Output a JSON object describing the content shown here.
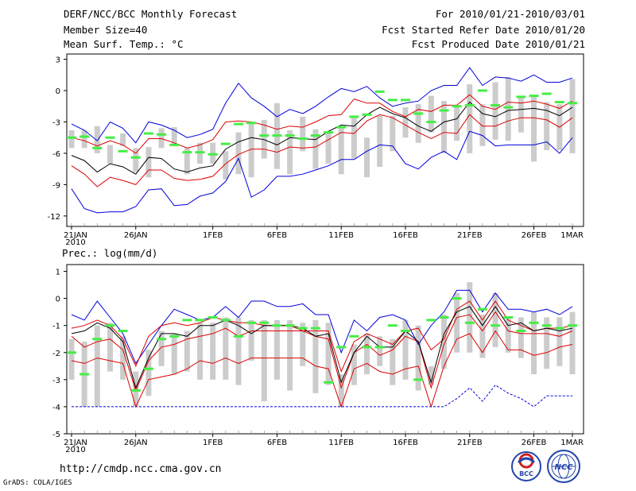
{
  "header": {
    "title": "DERF/NCC/BCC Monthly Forecast",
    "member_size": "Member Size=40",
    "variable": "Mean Surf. Temp.: °C",
    "period": "For 2010/01/21-2010/03/01",
    "refer_date": "Fcst Started Refer Date 2010/01/20",
    "produced_date": "Fcst Produced Date 2010/01/21"
  },
  "footer": {
    "url": "http://cmdp.ncc.cma.gov.cn",
    "credit": "GrADS: COLA/IGES"
  },
  "logos": {
    "bcc": "BCC",
    "ncc": "NCC"
  },
  "colors": {
    "envelope": "#0000dd",
    "spread": "#dd0000",
    "mean": "#000000",
    "marker": "#44ee44",
    "bar": "#cccccc"
  },
  "chart_data": [
    {
      "type": "line",
      "title": "Mean Surf. Temp.: °C",
      "ylim": [
        -13,
        3.5
      ],
      "yticks": [
        "3",
        "0",
        "-3",
        "-6",
        "-9",
        "-12"
      ],
      "ytick_values": [
        3,
        0,
        -3,
        -6,
        -9,
        -12
      ],
      "xticks": [
        "21JAN",
        "26JAN",
        "1FEB",
        "6FEB",
        "11FEB",
        "16FEB",
        "21FEB",
        "26FEB",
        "1MAR"
      ],
      "xtick_days": [
        0,
        5,
        11,
        16,
        21,
        26,
        31,
        36,
        39
      ],
      "xsub": "2010",
      "days": 40,
      "series": {
        "max": [
          -3.2,
          -3.8,
          -4.8,
          -3.0,
          -3.6,
          -5.0,
          -3.0,
          -3.3,
          -3.8,
          -4.5,
          -4.2,
          -3.7,
          -1.2,
          0.7,
          -0.7,
          -1.5,
          -2.5,
          -1.8,
          -2.2,
          -1.5,
          -0.6,
          0.2,
          -0.1,
          0.4,
          -0.7,
          -1.5,
          -1.2,
          -1.0,
          0.0,
          0.5,
          0.5,
          2.2,
          0.5,
          1.3,
          1.2,
          0.9,
          1.5,
          0.8,
          0.8,
          1.2
        ],
        "upper": [
          -4.5,
          -4.8,
          -5.3,
          -4.8,
          -5.2,
          -6.0,
          -4.6,
          -4.6,
          -5.0,
          -5.5,
          -5.2,
          -4.7,
          -3.0,
          -2.9,
          -3.0,
          -3.3,
          -3.7,
          -3.4,
          -3.5,
          -3.0,
          -2.4,
          -2.3,
          -0.8,
          -1.2,
          -1.2,
          -2.0,
          -2.5,
          -1.8,
          -2.0,
          -1.4,
          -1.4,
          -0.4,
          -1.5,
          -1.8,
          -1.1,
          -1.2,
          -1.0,
          -1.3,
          -1.7,
          -1.0
        ],
        "mean": [
          -6.2,
          -6.7,
          -7.8,
          -7.0,
          -7.3,
          -8.0,
          -6.4,
          -6.5,
          -7.5,
          -7.8,
          -7.4,
          -7.2,
          -5.6,
          -4.9,
          -4.5,
          -4.7,
          -5.2,
          -4.5,
          -4.6,
          -4.7,
          -3.9,
          -3.3,
          -3.4,
          -2.3,
          -1.6,
          -2.2,
          -2.6,
          -3.4,
          -3.9,
          -3.0,
          -2.7,
          -1.1,
          -2.2,
          -2.5,
          -1.9,
          -1.8,
          -1.7,
          -1.9,
          -2.4,
          -1.6
        ],
        "lower": [
          -7.2,
          -8.0,
          -9.2,
          -8.3,
          -8.6,
          -9.0,
          -7.6,
          -7.6,
          -8.4,
          -8.6,
          -8.5,
          -8.2,
          -7.0,
          -6.1,
          -5.6,
          -5.6,
          -5.9,
          -5.4,
          -5.5,
          -5.4,
          -4.7,
          -4.0,
          -4.1,
          -2.9,
          -2.3,
          -2.6,
          -3.3,
          -4.0,
          -4.6,
          -4.0,
          -4.1,
          -2.3,
          -3.4,
          -3.4,
          -2.9,
          -2.6,
          -2.6,
          -2.8,
          -3.5,
          -2.6
        ],
        "min": [
          -9.4,
          -11.3,
          -11.7,
          -11.6,
          -11.6,
          -11.1,
          -9.5,
          -9.4,
          -11.0,
          -10.9,
          -10.1,
          -9.8,
          -8.7,
          -6.5,
          -10.2,
          -9.5,
          -8.2,
          -8.2,
          -8.0,
          -7.6,
          -7.2,
          -6.6,
          -6.6,
          -5.8,
          -5.2,
          -5.3,
          -7.0,
          -7.5,
          -6.4,
          -5.8,
          -6.6,
          -3.9,
          -4.3,
          -5.3,
          -5.2,
          -5.2,
          -5.2,
          -4.9,
          -6.0,
          -4.5
        ]
      },
      "bars": [
        [
          -5.5,
          -3.8
        ],
        [
          -5.5,
          -3.8
        ],
        [
          -6.0,
          -3.4
        ],
        [
          -7.0,
          -5.2
        ],
        [
          -5.3,
          -4.1
        ],
        [
          -7.8,
          -5.5
        ],
        [
          -8.3,
          -5.4
        ],
        [
          -5.5,
          -3.6
        ],
        [
          -5.3,
          -3.5
        ],
        [
          -8.0,
          -5.5
        ],
        [
          -7.0,
          -5.0
        ],
        [
          -7.0,
          -5.0
        ],
        [
          -8.5,
          -5.8
        ],
        [
          -8.0,
          -4.0
        ],
        [
          -8.3,
          -3.0
        ],
        [
          -6.5,
          -2.8
        ],
        [
          -7.5,
          -1.2
        ],
        [
          -8.0,
          -3.8
        ],
        [
          -5.8,
          -2.5
        ],
        [
          -7.5,
          -3.7
        ],
        [
          -7.0,
          -4.0
        ],
        [
          -8.0,
          -3.5
        ],
        [
          -6.5,
          -2.5
        ],
        [
          -8.3,
          -4.5
        ],
        [
          -7.3,
          -2.4
        ],
        [
          -5.8,
          -2.4
        ],
        [
          -4.5,
          -1.6
        ],
        [
          -5.0,
          -1.3
        ],
        [
          -4.0,
          -0.5
        ],
        [
          -6.0,
          -1.0
        ],
        [
          -4.8,
          -1.6
        ],
        [
          -6.0,
          0.6
        ],
        [
          -5.3,
          -1.3
        ],
        [
          -4.7,
          0.8
        ],
        [
          -4.8,
          1.3
        ],
        [
          -4.0,
          -0.7
        ],
        [
          -6.8,
          -0.5
        ],
        [
          -5.7,
          -1.1
        ],
        [
          -5.7,
          -1.3
        ],
        [
          -6.0,
          1.1
        ]
      ],
      "markers": [
        -4.5,
        -4.4,
        -5.5,
        -4.5,
        -5.8,
        -6.4,
        -4.1,
        -4.2,
        -5.2,
        -5.9,
        -5.9,
        -6.1,
        -5.1,
        -3.2,
        -3.1,
        -4.3,
        -4.3,
        -4.3,
        -4.6,
        -4.3,
        -4.0,
        -3.5,
        -2.5,
        -2.3,
        -0.1,
        -0.9,
        -0.9,
        -2.2,
        -3.0,
        -1.9,
        -1.5,
        -1.4,
        0.0,
        -1.4,
        -1.6,
        -0.6,
        -0.5,
        -0.3,
        -1.1,
        -1.2
      ]
    },
    {
      "type": "line",
      "title": "Prec.: log(mm/d)",
      "ylim": [
        -5,
        1.25
      ],
      "yticks": [
        "1",
        "0",
        "-1",
        "-2",
        "-3",
        "-4",
        "-5"
      ],
      "ytick_values": [
        1,
        0,
        -1,
        -2,
        -3,
        -4,
        -5
      ],
      "xticks": [
        "21JAN",
        "26JAN",
        "1FEB",
        "6FEB",
        "11FEB",
        "16FEB",
        "21FEB",
        "26FEB",
        "1MAR"
      ],
      "xtick_days": [
        0,
        5,
        11,
        16,
        21,
        26,
        31,
        36,
        39
      ],
      "xsub": "2010",
      "days": 40,
      "series": {
        "max": [
          -0.6,
          -0.8,
          -0.1,
          -0.7,
          -1.3,
          -2.4,
          -1.7,
          -1.0,
          -0.4,
          -0.6,
          -0.8,
          -0.7,
          -0.3,
          -0.7,
          -0.1,
          -0.1,
          -0.3,
          -0.3,
          -0.2,
          -0.6,
          -0.6,
          -2.0,
          -0.8,
          -1.2,
          -0.7,
          -0.6,
          -0.8,
          -1.7,
          -1.0,
          -0.5,
          0.3,
          0.3,
          -0.5,
          0.2,
          -0.4,
          -0.4,
          -0.5,
          -0.4,
          -0.6,
          -0.3
        ],
        "upper": [
          -1.1,
          -1.0,
          -0.8,
          -1.0,
          -1.5,
          -2.5,
          -1.4,
          -1.0,
          -0.9,
          -1.0,
          -0.9,
          -0.7,
          -0.8,
          -0.9,
          -0.9,
          -1.0,
          -1.0,
          -1.0,
          -1.2,
          -1.2,
          -1.2,
          -2.7,
          -1.6,
          -1.3,
          -1.5,
          -1.7,
          -1.2,
          -1.1,
          -1.9,
          -1.5,
          -0.4,
          -0.1,
          -0.8,
          -0.1,
          -0.8,
          -1.0,
          -1.2,
          -1.1,
          -1.1,
          -1.0
        ],
        "mean": [
          -1.3,
          -1.2,
          -0.9,
          -1.1,
          -1.6,
          -3.3,
          -2.2,
          -1.3,
          -1.3,
          -1.4,
          -1.0,
          -1.0,
          -0.8,
          -1.0,
          -1.3,
          -1.0,
          -1.0,
          -1.0,
          -1.1,
          -1.4,
          -1.3,
          -3.1,
          -2.0,
          -1.4,
          -1.8,
          -1.8,
          -1.2,
          -1.6,
          -3.1,
          -1.3,
          -0.5,
          -0.3,
          -1.0,
          -0.3,
          -1.0,
          -0.9,
          -1.2,
          -1.1,
          -1.2,
          -1.1
        ],
        "lower": [
          -1.4,
          -1.8,
          -1.6,
          -1.5,
          -1.9,
          -3.4,
          -2.3,
          -1.8,
          -1.7,
          -1.5,
          -1.4,
          -1.3,
          -1.1,
          -1.4,
          -1.2,
          -1.2,
          -1.2,
          -1.2,
          -1.2,
          -1.4,
          -1.5,
          -3.3,
          -2.0,
          -1.7,
          -2.1,
          -1.9,
          -1.4,
          -1.6,
          -3.3,
          -1.7,
          -0.7,
          -0.6,
          -1.2,
          -0.5,
          -1.2,
          -1.3,
          -1.3,
          -1.3,
          -1.4,
          -1.2
        ],
        "min": [
          -4.0,
          -4.0,
          -4.0,
          -4.0,
          -4.0,
          -4.0,
          -4.0,
          -4.0,
          -4.0,
          -4.0,
          -4.0,
          -4.0,
          -4.0,
          -4.0,
          -4.0,
          -4.0,
          -4.0,
          -4.0,
          -4.0,
          -4.0,
          -4.0,
          -4.0,
          -4.0,
          -4.0,
          -4.0,
          -4.0,
          -4.0,
          -4.0,
          -4.0,
          -4.0,
          -3.7,
          -3.3,
          -3.8,
          -3.2,
          -3.5,
          -3.7,
          -4.0,
          -3.6,
          -3.6,
          -3.6
        ],
        "lower2": [
          -2.3,
          -2.4,
          -2.2,
          -2.3,
          -2.4,
          -4.0,
          -3.0,
          -2.9,
          -2.8,
          -2.6,
          -2.3,
          -2.4,
          -2.2,
          -2.4,
          -2.2,
          -2.2,
          -2.2,
          -2.2,
          -2.2,
          -2.5,
          -2.6,
          -4.0,
          -2.6,
          -2.4,
          -2.7,
          -2.8,
          -2.6,
          -2.5,
          -4.0,
          -2.5,
          -1.5,
          -1.3,
          -2.0,
          -1.2,
          -1.9,
          -1.9,
          -2.1,
          -2.0,
          -1.8,
          -1.7
        ]
      },
      "bars": [
        [
          -3.0,
          -1.5
        ],
        [
          -4.0,
          -1.6
        ],
        [
          -4.0,
          -1.0
        ],
        [
          -2.7,
          -0.9
        ],
        [
          -3.0,
          -1.4
        ],
        [
          -4.0,
          -2.7
        ],
        [
          -3.6,
          -1.9
        ],
        [
          -2.5,
          -1.2
        ],
        [
          -2.8,
          -1.3
        ],
        [
          -2.7,
          -1.2
        ],
        [
          -3.0,
          -0.9
        ],
        [
          -3.0,
          -0.9
        ],
        [
          -3.0,
          -0.7
        ],
        [
          -3.2,
          -0.7
        ],
        [
          -2.3,
          -0.8
        ],
        [
          -3.8,
          -0.8
        ],
        [
          -3.0,
          -0.8
        ],
        [
          -3.4,
          -0.8
        ],
        [
          -2.5,
          -0.9
        ],
        [
          -3.5,
          -0.8
        ],
        [
          -3.2,
          -0.9
        ],
        [
          -4.0,
          -2.8
        ],
        [
          -3.2,
          -1.7
        ],
        [
          -2.8,
          -1.3
        ],
        [
          -2.5,
          -1.4
        ],
        [
          -3.2,
          -1.5
        ],
        [
          -3.0,
          -0.8
        ],
        [
          -3.4,
          -1.0
        ],
        [
          -3.2,
          -2.5
        ],
        [
          -2.6,
          -0.6
        ],
        [
          -2.0,
          0.2
        ],
        [
          -2.0,
          0.6
        ],
        [
          -2.2,
          -0.6
        ],
        [
          -1.8,
          0.2
        ],
        [
          -2.0,
          -0.7
        ],
        [
          -2.2,
          -0.7
        ],
        [
          -2.8,
          -0.5
        ],
        [
          -2.6,
          -0.7
        ],
        [
          -2.5,
          -0.7
        ],
        [
          -2.8,
          -0.5
        ]
      ],
      "markers": [
        -2.0,
        -2.8,
        -1.5,
        -1.0,
        -1.2,
        -3.4,
        -2.6,
        -1.5,
        -1.4,
        -0.8,
        -0.8,
        -0.7,
        -0.8,
        -1.4,
        -0.9,
        -0.9,
        -1.0,
        -1.0,
        -1.1,
        -1.1,
        -3.1,
        -1.8,
        -1.4,
        -1.8,
        -1.8,
        -1.0,
        -1.2,
        -3.0,
        -0.8,
        -0.7,
        0.0,
        -0.9,
        -0.4,
        -1.0,
        -0.7,
        -1.2,
        -0.9,
        -1.0,
        -1.1,
        -1.0
      ]
    }
  ]
}
